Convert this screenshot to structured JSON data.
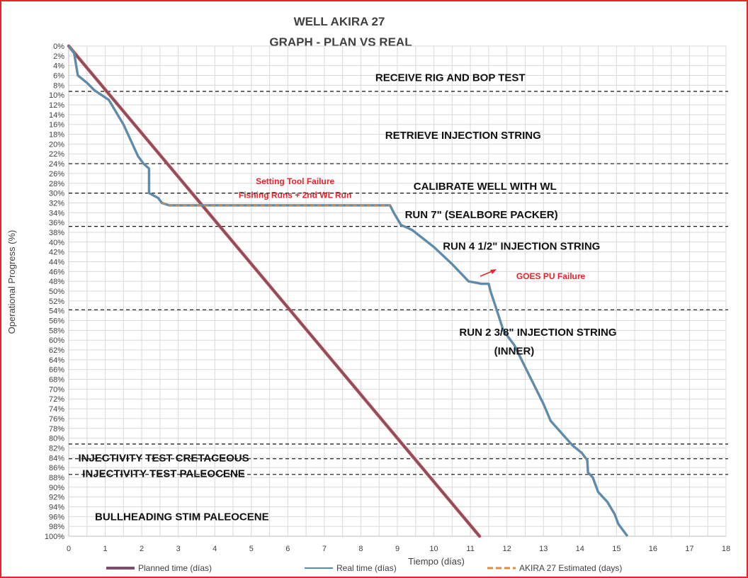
{
  "chart_data": {
    "type": "line",
    "title": [
      "WELL AKIRA 27",
      "GRAPH  - PLAN VS REAL"
    ],
    "xlabel": "Tiempo (días)",
    "ylabel": "Operational Progress (%)",
    "xlim": [
      0,
      18
    ],
    "xticks": [
      "0",
      "1",
      "2",
      "3",
      "4",
      "5",
      "6",
      "7",
      "8",
      "9",
      "10",
      "11",
      "12",
      "13",
      "14",
      "15",
      "16",
      "17",
      "18"
    ],
    "ylim": [
      0,
      100
    ],
    "y_inverted": true,
    "yticks": [
      "0%",
      "2%",
      "4%",
      "6%",
      "8%",
      "10%",
      "12%",
      "14%",
      "16%",
      "18%",
      "20%",
      "22%",
      "24%",
      "26%",
      "28%",
      "30%",
      "32%",
      "34%",
      "36%",
      "38%",
      "40%",
      "42%",
      "44%",
      "46%",
      "48%",
      "50%",
      "52%",
      "54%",
      "56%",
      "58%",
      "60%",
      "62%",
      "64%",
      "66%",
      "68%",
      "70%",
      "72%",
      "74%",
      "76%",
      "78%",
      "80%",
      "82%",
      "84%",
      "86%",
      "88%",
      "90%",
      "92%",
      "94%",
      "96%",
      "98%",
      "100%"
    ],
    "grid": true,
    "legend_position": "bottom",
    "series": [
      {
        "name": "Planned time (días)",
        "color": "#7a4f6e",
        "x": [
          0,
          11.25
        ],
        "y": [
          0,
          100
        ]
      },
      {
        "name": "Real time (días)",
        "color": "#4a8fbd",
        "x": [
          0,
          0.15,
          0.25,
          0.5,
          0.7,
          0.9,
          1.1,
          1.5,
          1.9,
          2.05,
          2.2,
          2.2,
          2.45,
          2.55,
          2.75,
          3.5,
          5,
          7,
          8.8,
          8.9,
          9.1,
          9.4,
          10,
          10.5,
          10.95,
          11.3,
          11.5,
          11.55,
          11.75,
          11.9,
          12.2,
          12.6,
          13,
          13.2,
          13.5,
          13.8,
          14.05,
          14.2,
          14.22,
          14.35,
          14.5,
          14.75,
          14.95,
          15.05,
          15.2,
          15.3
        ],
        "y": [
          0,
          1.5,
          6,
          7.5,
          9,
          10,
          11,
          16,
          22.5,
          24,
          25,
          30,
          31,
          32,
          32.5,
          32.5,
          32.5,
          32.5,
          32.5,
          34,
          36.5,
          37.5,
          41,
          44.5,
          48,
          48.5,
          48.5,
          50,
          54.5,
          58,
          61,
          67,
          73,
          76.5,
          79,
          81.5,
          83,
          84.5,
          87,
          88,
          91,
          93,
          95.5,
          97.5,
          99,
          100
        ]
      },
      {
        "name": "AKIRA 27 Estimated (days)",
        "color": "#e08a3c",
        "dashed": true,
        "x": [
          2.55,
          2.75,
          3.5,
          5,
          7,
          8.8
        ],
        "y": [
          32,
          32.5,
          32.5,
          32.5,
          32.5,
          32.5
        ]
      }
    ],
    "phase_boundaries": [
      9.25,
      24,
      30,
      36.8,
      53.8,
      81.2,
      84.2,
      87.4
    ],
    "phase_labels": [
      {
        "text": "RECEIVE RIG AND BOP TEST",
        "x": 10.45,
        "y": 6.4
      },
      {
        "text": "RETRIEVE INJECTION STRING",
        "x": 10.8,
        "y": 18.2
      },
      {
        "text": "CALIBRATE WELL WITH WL",
        "x": 11.4,
        "y": 28.6
      },
      {
        "text": "RUN 7\" (SEALBORE PACKER)",
        "x": 11.3,
        "y": 34.4
      },
      {
        "text": "RUN 4 1/2\" INJECTION STRING",
        "x": 12.4,
        "y": 40.8
      },
      {
        "text": "RUN 2 3/8\" INJECTION STRING",
        "x": 12.85,
        "y": 58.4
      },
      {
        "text": "(INNER)",
        "x": 12.2,
        "y": 62.2
      },
      {
        "text": "INJECTIVITY TEST CRETACEOUS",
        "x": 2.6,
        "y": 84.0
      },
      {
        "text": "INJECTIVITY TEST PALEOCENE",
        "x": 2.6,
        "y": 87.2
      },
      {
        "text": "BULLHEADING STIM PALEOCENE",
        "x": 3.1,
        "y": 96.0
      }
    ],
    "annotations": [
      {
        "text": "Setting Tool Failure",
        "x": 6.2,
        "y": 27.6
      },
      {
        "text": "Fishing Runs + 2nd WL Run",
        "x": 6.2,
        "y": 30.4
      },
      {
        "text": "GOES PU Failure",
        "x": 13.2,
        "y": 47.0
      }
    ]
  }
}
